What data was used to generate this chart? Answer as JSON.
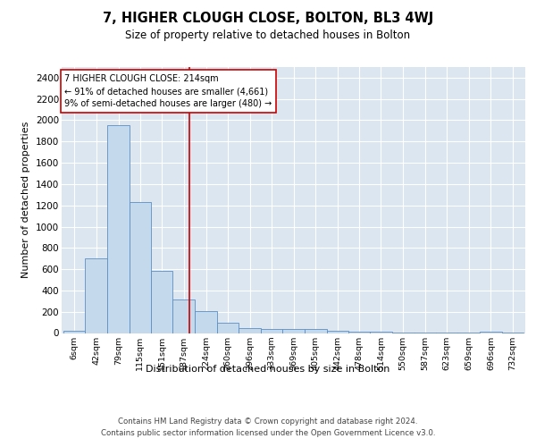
{
  "title": "7, HIGHER CLOUGH CLOSE, BOLTON, BL3 4WJ",
  "subtitle": "Size of property relative to detached houses in Bolton",
  "xlabel": "Distribution of detached houses by size in Bolton",
  "ylabel": "Number of detached properties",
  "bar_labels": [
    "6sqm",
    "42sqm",
    "79sqm",
    "115sqm",
    "151sqm",
    "187sqm",
    "224sqm",
    "260sqm",
    "296sqm",
    "333sqm",
    "369sqm",
    "405sqm",
    "442sqm",
    "478sqm",
    "514sqm",
    "550sqm",
    "587sqm",
    "623sqm",
    "659sqm",
    "696sqm",
    "732sqm"
  ],
  "bar_heights": [
    20,
    700,
    1950,
    1230,
    580,
    315,
    205,
    95,
    45,
    38,
    35,
    35,
    20,
    15,
    10,
    5,
    5,
    3,
    3,
    15,
    5
  ],
  "bar_color": "#c5d9ed",
  "bar_edge_color": "#5b8ec4",
  "background_color": "#dce6f1",
  "grid_color": "#ffffff",
  "vline_x": 214,
  "annotation_text": "7 HIGHER CLOUGH CLOSE: 214sqm\n← 91% of detached houses are smaller (4,661)\n9% of semi-detached houses are larger (480) →",
  "annotation_box_color": "#ffffff",
  "annotation_box_edge": "#cc0000",
  "vline_color": "#cc0000",
  "ylim": [
    0,
    2500
  ],
  "yticks": [
    0,
    200,
    400,
    600,
    800,
    1000,
    1200,
    1400,
    1600,
    1800,
    2000,
    2200,
    2400
  ],
  "footer": "Contains HM Land Registry data © Crown copyright and database right 2024.\nContains public sector information licensed under the Open Government Licence v3.0.",
  "bin_edges": [
    6,
    42,
    79,
    115,
    151,
    187,
    224,
    260,
    296,
    333,
    369,
    405,
    442,
    478,
    514,
    550,
    587,
    623,
    659,
    696,
    732,
    768
  ]
}
